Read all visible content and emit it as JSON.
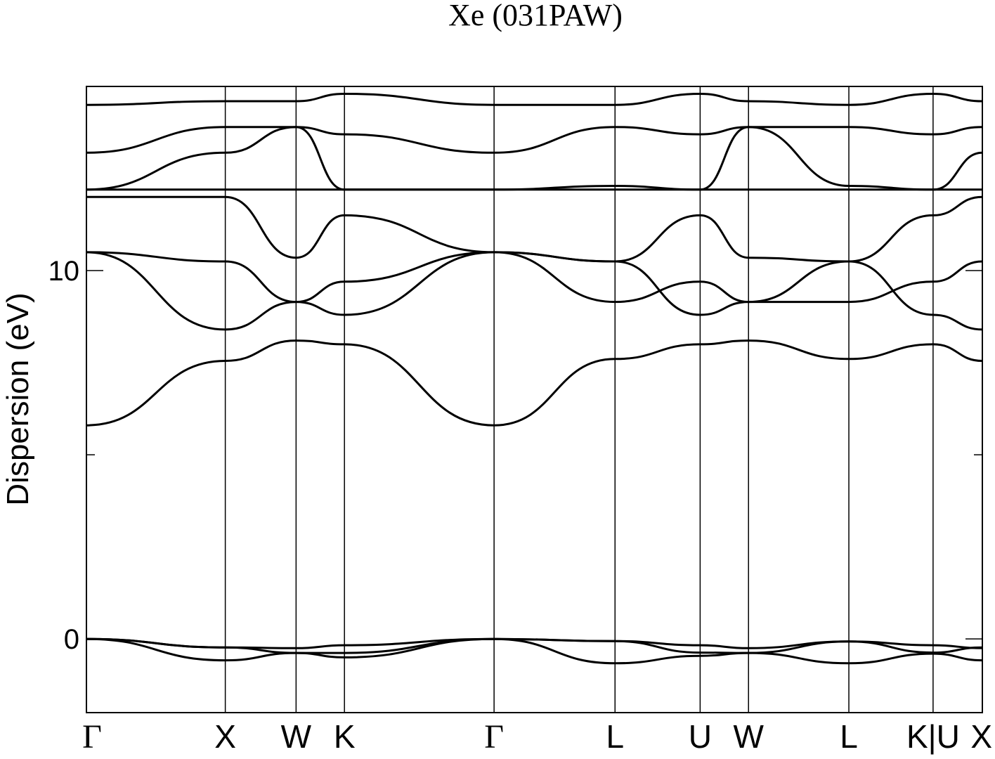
{
  "chart_data": {
    "type": "line",
    "title": "Xe (031PAW)",
    "ylabel": "Dispersion (eV)",
    "ylim": [
      -2,
      15
    ],
    "yticks": [
      0,
      10
    ],
    "y_minor_ticks": [
      5
    ],
    "xlim": [
      0,
      1
    ],
    "kpoints": [
      {
        "label": "Γ",
        "x": 0.0
      },
      {
        "label": "X",
        "x": 0.155
      },
      {
        "label": "W",
        "x": 0.234
      },
      {
        "label": "K",
        "x": 0.288
      },
      {
        "label": "Γ",
        "x": 0.455
      },
      {
        "label": "L",
        "x": 0.59
      },
      {
        "label": "U",
        "x": 0.685
      },
      {
        "label": "W",
        "x": 0.739
      },
      {
        "label": "L",
        "x": 0.851
      },
      {
        "label": "K|U",
        "x": 0.945
      },
      {
        "label": "X",
        "x": 1.0
      }
    ],
    "series": [
      {
        "values": [
          0.0,
          -0.23,
          -0.25,
          -0.17,
          0.0,
          -0.06,
          -0.17,
          -0.25,
          -0.07,
          -0.17,
          -0.25
        ]
      },
      {
        "values": [
          0.0,
          -0.23,
          -0.38,
          -0.38,
          0.0,
          -0.06,
          -0.37,
          -0.38,
          -0.07,
          -0.37,
          -0.23
        ]
      },
      {
        "values": [
          0.0,
          -0.58,
          -0.38,
          -0.5,
          0.0,
          -0.66,
          -0.46,
          -0.38,
          -0.66,
          -0.4,
          -0.58
        ]
      },
      {
        "values": [
          5.8,
          7.55,
          8.1,
          8.0,
          5.8,
          7.6,
          8.0,
          8.1,
          7.6,
          8.0,
          7.55
        ]
      },
      {
        "values": [
          10.5,
          8.4,
          9.15,
          8.8,
          10.5,
          10.25,
          8.8,
          9.15,
          10.25,
          8.8,
          8.4
        ]
      },
      {
        "values": [
          10.5,
          10.25,
          9.15,
          9.7,
          10.5,
          9.15,
          9.7,
          9.15,
          9.15,
          9.7,
          10.25
        ]
      },
      {
        "values": [
          12.0,
          12.0,
          10.35,
          11.5,
          10.5,
          10.25,
          11.5,
          10.35,
          10.25,
          11.5,
          12.0
        ]
      },
      {
        "values": [
          12.2,
          12.2,
          12.2,
          12.2,
          12.2,
          12.2,
          12.2,
          12.2,
          12.2,
          12.2,
          12.2
        ]
      },
      {
        "values": [
          12.2,
          13.2,
          13.9,
          12.2,
          12.2,
          12.3,
          12.2,
          13.9,
          12.3,
          12.2,
          13.2
        ]
      },
      {
        "values": [
          13.2,
          13.9,
          13.9,
          13.7,
          13.2,
          13.9,
          13.7,
          13.9,
          13.9,
          13.7,
          13.9
        ]
      },
      {
        "values": [
          14.5,
          14.6,
          14.6,
          14.8,
          14.5,
          14.5,
          14.8,
          14.6,
          14.5,
          14.8,
          14.6
        ]
      }
    ]
  }
}
